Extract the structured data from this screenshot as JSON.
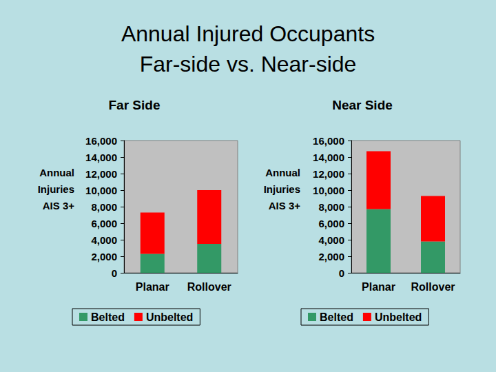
{
  "title": "Annual Injured Occupants\nFar-side vs. Near-side",
  "chart_data": [
    {
      "type": "bar",
      "title": "Far Side",
      "ylabel": "Annual\nInjuries\nAIS 3+",
      "categories": [
        "Planar",
        "Rollover"
      ],
      "stacked": true,
      "grid": false,
      "legend": "bottom",
      "series": [
        {
          "name": "Belted",
          "color": "#339966",
          "values": [
            2300,
            3500
          ]
        },
        {
          "name": "Unbelted",
          "color": "#ff0000",
          "values": [
            5000,
            6500
          ]
        }
      ],
      "ylim": [
        0,
        16000
      ],
      "yticks": [
        0,
        {
          "value": 2000,
          "label": "2,000"
        },
        {
          "value": 4000,
          "label": "4,000"
        },
        {
          "value": 6000,
          "label": "6,000"
        },
        {
          "value": 8000,
          "label": "8,000"
        },
        {
          "value": 10000,
          "label": "10,000"
        },
        {
          "value": 12000,
          "label": "12,000"
        },
        {
          "value": 14000,
          "label": "14,000"
        },
        {
          "value": 16000,
          "label": "16,000"
        }
      ]
    },
    {
      "type": "bar",
      "title": "Near Side",
      "ylabel": "Annual\nInjuries\nAIS 3+",
      "categories": [
        "Planar",
        "Rollover"
      ],
      "stacked": true,
      "grid": false,
      "legend": "bottom",
      "series": [
        {
          "name": "Belted",
          "color": "#339966",
          "values": [
            7700,
            3800
          ]
        },
        {
          "name": "Unbelted",
          "color": "#ff0000",
          "values": [
            7000,
            5500
          ]
        }
      ],
      "ylim": [
        0,
        16000
      ],
      "yticks": [
        0,
        {
          "value": 2000,
          "label": "2,000"
        },
        {
          "value": 4000,
          "label": "4,000"
        },
        {
          "value": 6000,
          "label": "6,000"
        },
        {
          "value": 8000,
          "label": "8,000"
        },
        {
          "value": 10000,
          "label": "10,000"
        },
        {
          "value": 12000,
          "label": "12,000"
        },
        {
          "value": 14000,
          "label": "14,000"
        },
        {
          "value": 16000,
          "label": "16,000"
        }
      ]
    }
  ]
}
